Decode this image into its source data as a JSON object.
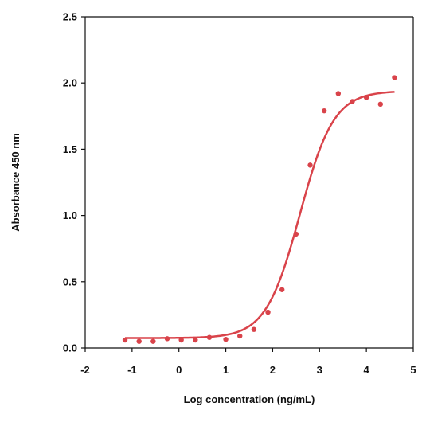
{
  "chart_data": {
    "type": "scatter",
    "title": "",
    "xlabel": "Log concentration (ng/mL)",
    "ylabel": "Absorbance 450 nm",
    "xlim": [
      -2,
      5
    ],
    "ylim": [
      0,
      2.5
    ],
    "x_ticks": [
      "-2",
      "-1",
      "0",
      "1",
      "2",
      "3",
      "4",
      "5"
    ],
    "y_ticks": [
      "0.0",
      "0.5",
      "1.0",
      "1.5",
      "2.0",
      "2.5"
    ],
    "grid": false,
    "legend": "none",
    "color": "#d9434a",
    "points": [
      {
        "x": -1.15,
        "y": 0.06
      },
      {
        "x": -0.85,
        "y": 0.05
      },
      {
        "x": -0.55,
        "y": 0.05
      },
      {
        "x": -0.25,
        "y": 0.07
      },
      {
        "x": 0.05,
        "y": 0.06
      },
      {
        "x": 0.35,
        "y": 0.06
      },
      {
        "x": 0.65,
        "y": 0.08
      },
      {
        "x": 1.0,
        "y": 0.065
      },
      {
        "x": 1.3,
        "y": 0.09
      },
      {
        "x": 1.6,
        "y": 0.14
      },
      {
        "x": 1.9,
        "y": 0.27
      },
      {
        "x": 2.2,
        "y": 0.44
      },
      {
        "x": 2.5,
        "y": 0.86
      },
      {
        "x": 2.8,
        "y": 1.38
      },
      {
        "x": 3.1,
        "y": 1.79
      },
      {
        "x": 3.4,
        "y": 1.92
      },
      {
        "x": 3.7,
        "y": 1.86
      },
      {
        "x": 4.0,
        "y": 1.89
      },
      {
        "x": 4.3,
        "y": 1.84
      },
      {
        "x": 4.6,
        "y": 2.04
      }
    ],
    "fit": {
      "model": "4PL",
      "bottom": 0.075,
      "top": 1.94,
      "log_ec50": 2.58,
      "hill_slope": 1.2,
      "x_range": [
        -1.15,
        4.6
      ]
    }
  }
}
